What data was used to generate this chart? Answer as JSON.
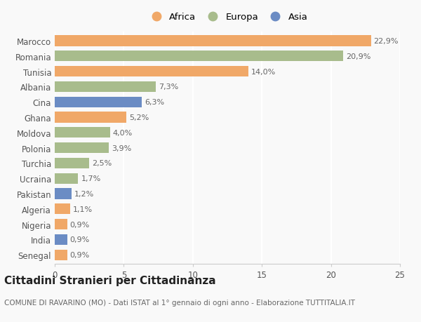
{
  "countries": [
    "Marocco",
    "Romania",
    "Tunisia",
    "Albania",
    "Cina",
    "Ghana",
    "Moldova",
    "Polonia",
    "Turchia",
    "Ucraina",
    "Pakistan",
    "Algeria",
    "Nigeria",
    "India",
    "Senegal"
  ],
  "values": [
    22.9,
    20.9,
    14.0,
    7.3,
    6.3,
    5.2,
    4.0,
    3.9,
    2.5,
    1.7,
    1.2,
    1.1,
    0.9,
    0.9,
    0.9
  ],
  "labels": [
    "22,9%",
    "20,9%",
    "14,0%",
    "7,3%",
    "6,3%",
    "5,2%",
    "4,0%",
    "3,9%",
    "2,5%",
    "1,7%",
    "1,2%",
    "1,1%",
    "0,9%",
    "0,9%",
    "0,9%"
  ],
  "continent": [
    "Africa",
    "Europa",
    "Africa",
    "Europa",
    "Asia",
    "Africa",
    "Europa",
    "Europa",
    "Europa",
    "Europa",
    "Asia",
    "Africa",
    "Africa",
    "Asia",
    "Africa"
  ],
  "colors": {
    "Africa": "#F0A868",
    "Europa": "#A8BC8C",
    "Asia": "#6B8CC4"
  },
  "legend_labels": [
    "Africa",
    "Europa",
    "Asia"
  ],
  "legend_colors": [
    "#F0A868",
    "#A8BC8C",
    "#6B8CC4"
  ],
  "xlim": [
    0,
    25
  ],
  "xticks": [
    0,
    5,
    10,
    15,
    20,
    25
  ],
  "title": "Cittadini Stranieri per Cittadinanza",
  "subtitle": "COMUNE DI RAVARINO (MO) - Dati ISTAT al 1° gennaio di ogni anno - Elaborazione TUTTITALIA.IT",
  "background_color": "#f9f9f9",
  "bar_height": 0.7,
  "label_fontsize": 8,
  "tick_fontsize": 8.5,
  "title_fontsize": 11,
  "subtitle_fontsize": 7.5
}
